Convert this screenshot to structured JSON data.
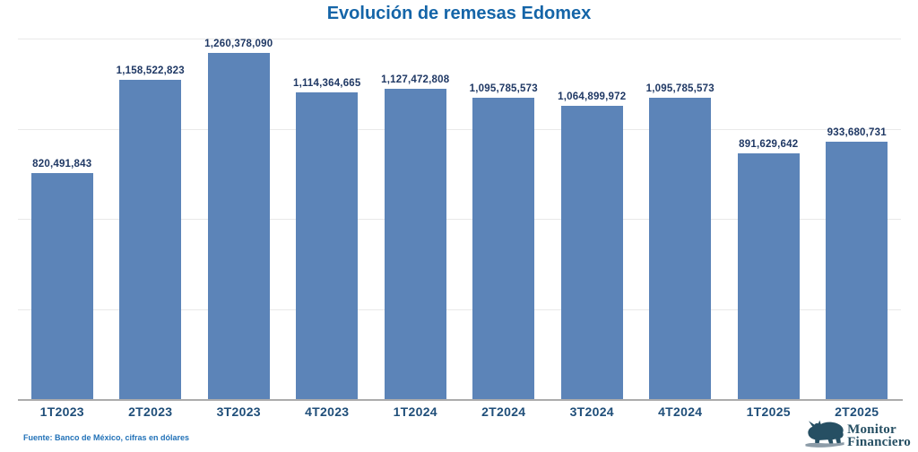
{
  "header": {
    "title": "Evolución de remesas Edomex"
  },
  "footer": {
    "source": "Fuente: Banco de México, cifras en dólares",
    "logo": {
      "name": "Monitor Financiero",
      "line1": "Monitor",
      "line2": "Financiero",
      "icon": "bull-icon"
    }
  },
  "chart_data": {
    "type": "bar",
    "title": "Evolución de remesas Edomex",
    "categories": [
      "1T2023",
      "2T2023",
      "3T2023",
      "4T2023",
      "1T2024",
      "2T2024",
      "3T2024",
      "4T2024",
      "1T2025",
      "2T2025"
    ],
    "values": [
      820491843,
      1158522823,
      1260378090,
      1114364665,
      1127472808,
      1095785573,
      1064899972,
      1095785573,
      891629642,
      933680731
    ],
    "value_labels": [
      "820,491,843",
      "1,158,522,823",
      "1,260,378,090",
      "1,114,364,665",
      "1,127,472,808",
      "1,095,785,573",
      "1,064,899,972",
      "1,095,785,573",
      "891,629,642",
      "933,680,731"
    ],
    "xlabel": "",
    "ylabel": "",
    "ylim": [
      0,
      1310000000
    ],
    "grid": "4 faint horizontal gridlines, unlabeled y-axis",
    "legend": "none",
    "colors": {
      "bar": "#5C84B8",
      "title": "#1565A8",
      "value_label": "#1F3864",
      "axis_label": "#1F4E79",
      "source": "#2272B8",
      "gridline": "#E9E9E9",
      "axis_line": "#ACACAC",
      "logo": "#264F63"
    }
  }
}
